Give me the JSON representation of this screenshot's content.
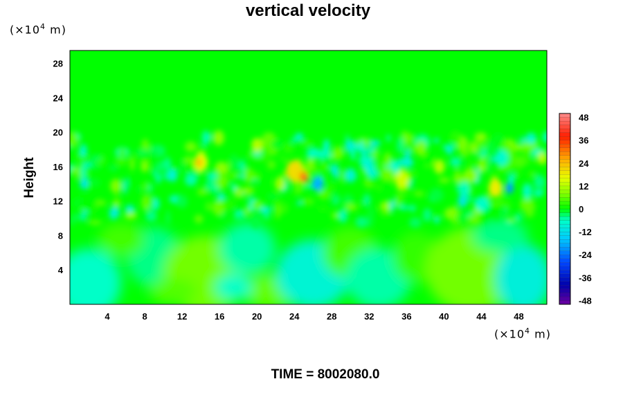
{
  "chart_data": {
    "type": "heatmap",
    "title": "vertical velocity",
    "ylabel": "Height",
    "xlabel": "",
    "x_unit": {
      "prefix": "(×10",
      "exp": "4",
      "suffix": " m)"
    },
    "y_unit": {
      "prefix": "(×10",
      "exp": "4",
      "suffix": " m)"
    },
    "x_ticks": [
      4,
      8,
      12,
      16,
      20,
      24,
      28,
      32,
      36,
      40,
      44,
      48
    ],
    "y_ticks": [
      4,
      8,
      12,
      16,
      20,
      24,
      28
    ],
    "xlim": [
      0,
      51
    ],
    "ylim": [
      0,
      29.5
    ],
    "colorbar": {
      "range": [
        -50,
        50
      ],
      "ticks": [
        48,
        36,
        24,
        12,
        0,
        -12,
        -24,
        -36,
        -48
      ]
    },
    "field_description_levels": {
      "upper_layer_20_to_29": 0,
      "middle_layer_10_to_20": "mixed -12 to 24",
      "lower_layer_0_to_10": "mixed -10 to 8"
    },
    "footer": "TIME = 8002080.0"
  }
}
